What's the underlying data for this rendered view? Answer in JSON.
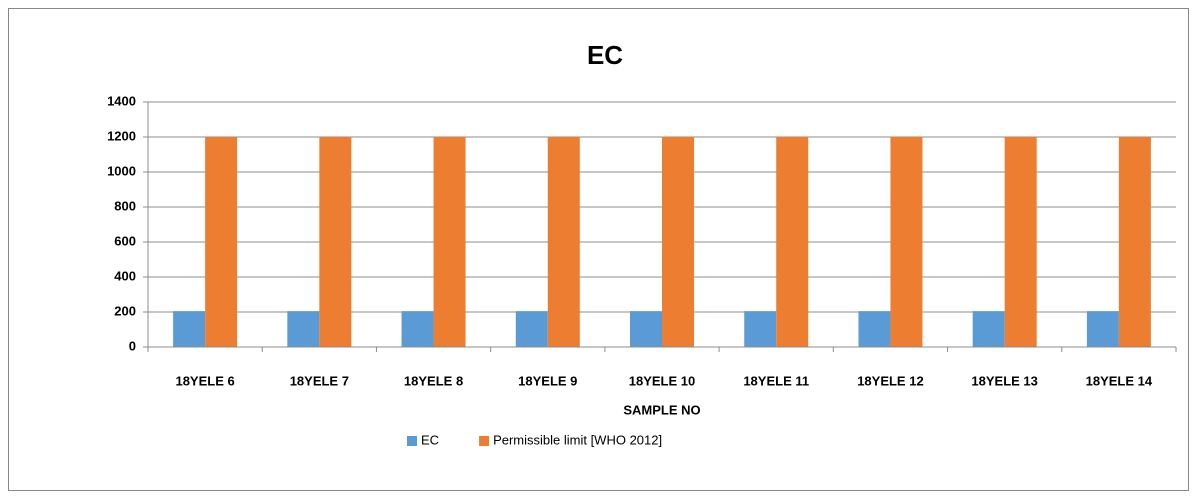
{
  "chart_data": {
    "type": "bar",
    "title": "EC",
    "x_label": "SAMPLE NO",
    "categories": [
      "18YELE 6",
      "18YELE 7",
      "18YELE 8",
      "18YELE 9",
      "18YELE 10",
      "18YELE 11",
      "18YELE 12",
      "18YELE 13",
      "18YELE 14"
    ],
    "series": [
      {
        "name": "EC",
        "color": "#5b9bd5",
        "values": [
          205,
          205,
          205,
          205,
          205,
          205,
          205,
          205,
          205
        ]
      },
      {
        "name": "Permissible limit [WHO 2012]",
        "color": "#ed7d31",
        "values": [
          1200,
          1200,
          1200,
          1200,
          1200,
          1200,
          1200,
          1200,
          1200
        ]
      }
    ],
    "ylim": [
      0,
      1400
    ],
    "yticks": [
      0,
      200,
      400,
      600,
      800,
      1000,
      1200,
      1400
    ],
    "grid": true,
    "legend": "bottom"
  }
}
